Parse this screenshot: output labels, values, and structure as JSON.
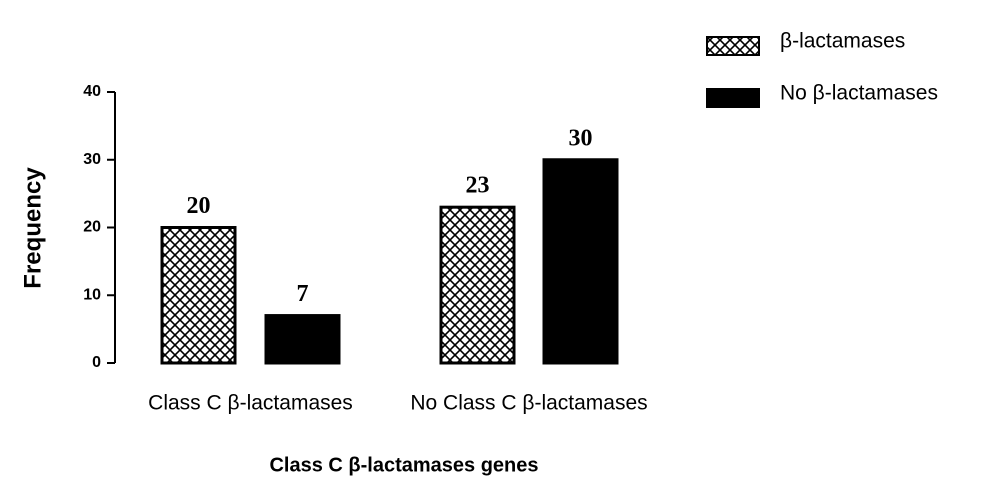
{
  "chart_data": {
    "type": "bar",
    "x_label": "Class C β-lactamases genes",
    "y_label": "Frequency",
    "categories": [
      "Class C β-lactamases",
      "No Class C β-lactamases"
    ],
    "series": [
      {
        "name": "β-lactamases",
        "color": "#000000",
        "hatch": "crosshatch",
        "values": [
          20,
          23
        ]
      },
      {
        "name": "No β-lactamases",
        "color": "#000000",
        "hatch": null,
        "values": [
          7,
          30
        ]
      }
    ],
    "ylim": [
      0,
      40
    ],
    "yticks": [
      0,
      10,
      20,
      30,
      40
    ],
    "grid": false,
    "legend": "top-right"
  }
}
